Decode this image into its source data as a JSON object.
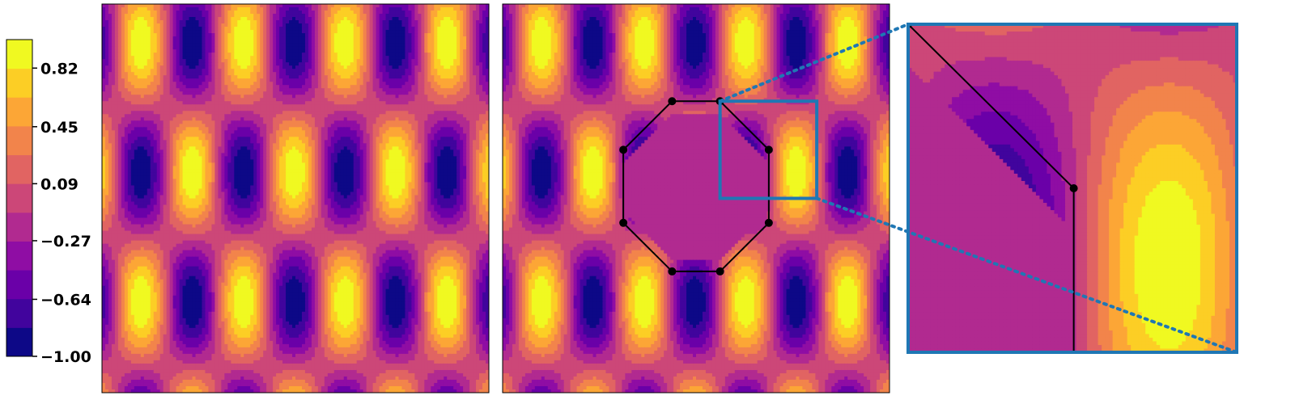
{
  "chart_data": {
    "type": "heatmap",
    "colormap": [
      "#0d0887",
      "#41049d",
      "#6a00a8",
      "#8f0da4",
      "#b12a90",
      "#cc4778",
      "#e16462",
      "#f2844b",
      "#fca636",
      "#fcce25",
      "#f0f921"
    ],
    "levels": [
      -1.0,
      -0.82,
      -0.64,
      -0.45,
      -0.27,
      -0.09,
      0.09,
      0.27,
      0.45,
      0.64,
      0.82,
      1.0
    ],
    "colorbar": {
      "ticks": [
        "0.82",
        "0.45",
        "0.09",
        "−0.27",
        "−0.64",
        "−1.00"
      ],
      "tick_values": [
        0.82,
        0.45,
        0.09,
        -0.27,
        -0.64,
        -1.0
      ],
      "range": [
        -1.0,
        1.0
      ]
    },
    "field": {
      "expression": "cos(k*x) * cos(k*y)",
      "x_periods": 3.8,
      "y_periods": 1.5,
      "x_range": [
        0,
        1
      ],
      "y_range": [
        0,
        1
      ]
    },
    "panels": [
      {
        "name": "full-field",
        "masked": false
      },
      {
        "name": "masked-field",
        "masked": true,
        "mask_value": -0.2,
        "octagon_vertices": [
          [
            0.438,
            0.25
          ],
          [
            0.562,
            0.25
          ],
          [
            0.688,
            0.375
          ],
          [
            0.688,
            0.563
          ],
          [
            0.562,
            0.688
          ],
          [
            0.438,
            0.688
          ],
          [
            0.312,
            0.563
          ],
          [
            0.312,
            0.375
          ]
        ],
        "zoom_region": {
          "x": [
            0.562,
            0.812
          ],
          "y": [
            0.25,
            0.5
          ]
        }
      },
      {
        "name": "zoom-inset",
        "source_panel": "masked-field",
        "region": {
          "x": [
            0.562,
            0.812
          ],
          "y": [
            0.25,
            0.5
          ]
        }
      }
    ],
    "inset_color": "#1f77b4"
  }
}
